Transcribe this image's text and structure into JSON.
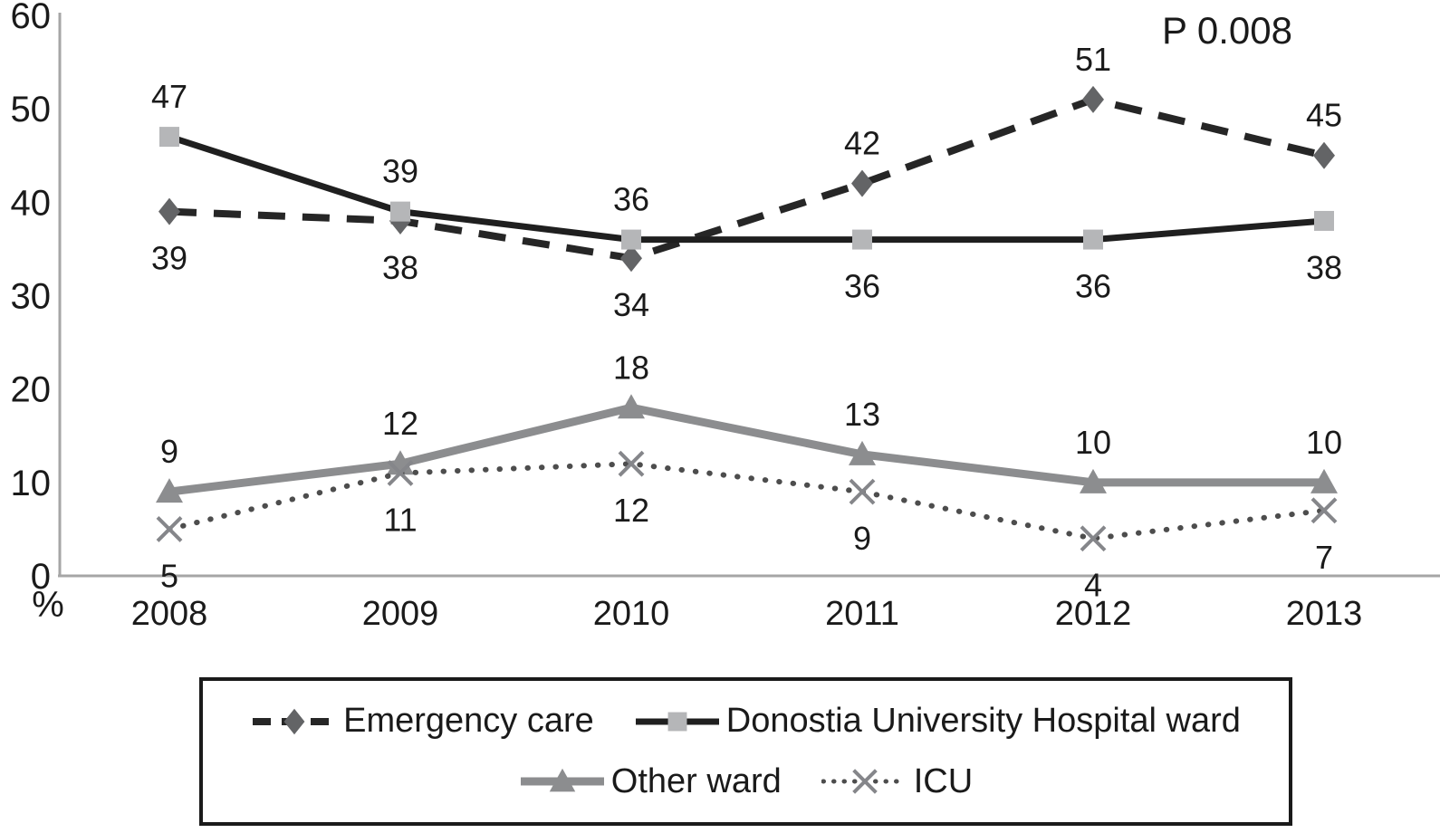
{
  "chart_data": {
    "type": "line",
    "title": "",
    "xlabel": "",
    "ylabel": "%",
    "categories": [
      "2008",
      "2009",
      "2010",
      "2011",
      "2012",
      "2013"
    ],
    "yticks": [
      0,
      10,
      20,
      30,
      40,
      50,
      60
    ],
    "ylim": [
      0,
      60
    ],
    "grid": false,
    "annotation": "P 0.008",
    "legend_position": "bottom-box",
    "colors": {
      "axis": "#a6a6a6",
      "text": "#1a1a1a"
    },
    "series": [
      {
        "name": "Emergency care",
        "values": [
          39,
          38,
          34,
          42,
          51,
          45
        ],
        "line": "dashed",
        "color": "#262626",
        "marker": "diamond",
        "marker_color": "#636466",
        "label_side": [
          "below",
          "below",
          "below",
          "above",
          "above",
          "above"
        ]
      },
      {
        "name": "Donostia University Hospital ward",
        "values": [
          47,
          39,
          36,
          36,
          36,
          38
        ],
        "line": "solid",
        "color": "#1f1f1f",
        "marker": "square",
        "marker_color": "#b5b6b8",
        "label_side": [
          "above",
          "above",
          "above",
          "below",
          "below",
          "below"
        ]
      },
      {
        "name": "Other ward",
        "values": [
          9,
          12,
          18,
          13,
          10,
          10
        ],
        "line": "solid",
        "color": "#8c8d8f",
        "marker": "triangle",
        "marker_color": "#8c8d8f",
        "label_side": [
          "above",
          "above",
          "above",
          "above",
          "above",
          "above"
        ]
      },
      {
        "name": "ICU",
        "values": [
          5,
          11,
          12,
          9,
          4,
          7
        ],
        "line": "dotted",
        "color": "#4d4d4d",
        "marker": "x",
        "marker_color": "#85868a",
        "label_side": [
          "below",
          "below",
          "below",
          "below",
          "below",
          "below"
        ]
      }
    ]
  }
}
